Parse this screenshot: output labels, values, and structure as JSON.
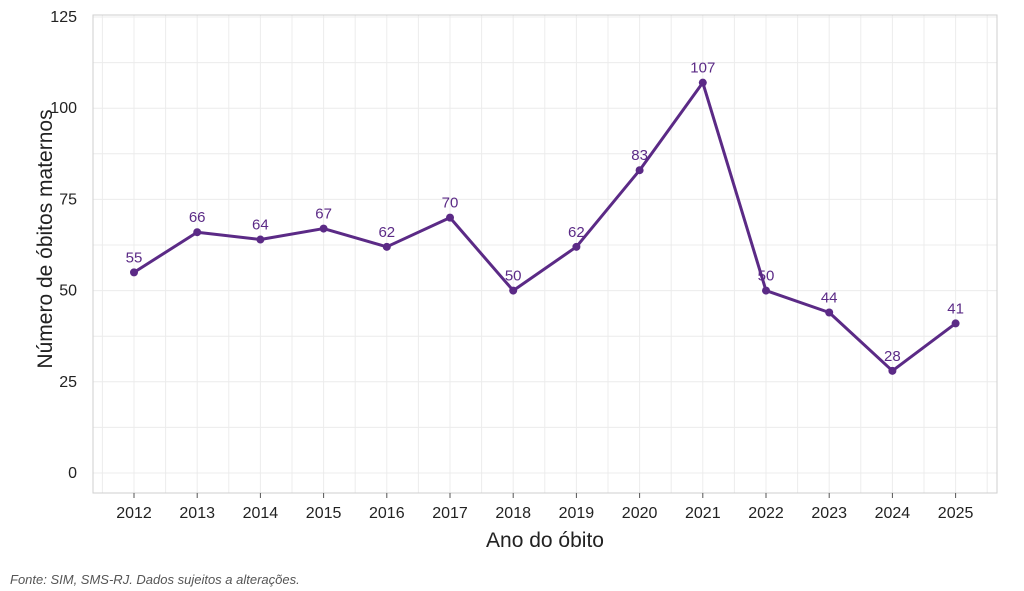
{
  "chart_data": {
    "type": "line",
    "title": "",
    "xlabel": "Ano do óbito",
    "ylabel": "Número de óbitos maternos",
    "x": [
      "2012",
      "2013",
      "2014",
      "2015",
      "2016",
      "2017",
      "2018",
      "2019",
      "2020",
      "2021",
      "2022",
      "2023",
      "2024",
      "2025"
    ],
    "series": [
      {
        "values": [
          55,
          66,
          64,
          67,
          62,
          70,
          50,
          62,
          83,
          107,
          50,
          44,
          28,
          41
        ],
        "color": "#5b2a86"
      }
    ],
    "yticks": [
      0,
      25,
      50,
      75,
      100,
      125
    ],
    "ylim": [
      0,
      125
    ],
    "grid": true,
    "data_labels": true,
    "legend": "none"
  },
  "footer": {
    "source": "Fonte: SIM, SMS-RJ. Dados sujeitos a alterações."
  }
}
